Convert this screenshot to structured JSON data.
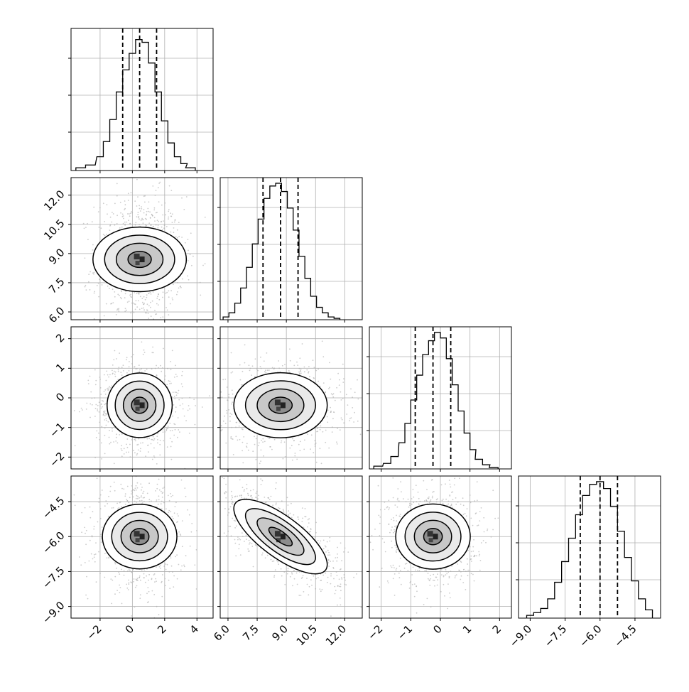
{
  "chart_data": {
    "type": "corner",
    "params": [
      {
        "ticks": [
          -2,
          0,
          2,
          4
        ],
        "tick_labels": [
          "−2",
          "0",
          "2",
          "4"
        ],
        "range": [
          -3.8,
          5.0
        ]
      },
      {
        "ticks": [
          6.0,
          7.5,
          9.0,
          10.5,
          12.0
        ],
        "tick_labels": [
          "6.0",
          "7.5",
          "9.0",
          "10.5",
          "12.0"
        ],
        "range": [
          5.6,
          12.9
        ]
      },
      {
        "ticks": [
          -2,
          -1,
          0,
          1,
          2
        ],
        "tick_labels": [
          "−2",
          "−1",
          "0",
          "1",
          "2"
        ],
        "range": [
          -2.4,
          2.4
        ]
      },
      {
        "ticks": [
          -9.0,
          -7.5,
          -6.0,
          -4.5
        ],
        "tick_labels": [
          "−9.0",
          "−7.5",
          "−6.0",
          "−4.5"
        ],
        "range": [
          -9.5,
          -3.4
        ]
      }
    ],
    "marginals": [
      {
        "quantiles": [
          -0.6,
          0.45,
          1.5
        ],
        "bins": [
          -3.2,
          -2.6,
          -2.0,
          -1.6,
          -1.2,
          -0.8,
          -0.4,
          0.0,
          0.4,
          0.8,
          1.2,
          1.6,
          2.0,
          2.4,
          2.8,
          3.2,
          3.6
        ],
        "heights": [
          0.02,
          0.04,
          0.1,
          0.21,
          0.37,
          0.57,
          0.73,
          0.85,
          0.95,
          0.93,
          0.78,
          0.57,
          0.36,
          0.2,
          0.1,
          0.05,
          0.02
        ]
      },
      {
        "quantiles": [
          7.8,
          8.7,
          9.6
        ],
        "bins": [
          5.9,
          6.2,
          6.5,
          6.8,
          7.1,
          7.4,
          7.7,
          8.0,
          8.3,
          8.6,
          8.9,
          9.2,
          9.5,
          9.8,
          10.1,
          10.4,
          10.7,
          11.0,
          11.3,
          11.6
        ],
        "heights": [
          0.02,
          0.05,
          0.12,
          0.23,
          0.38,
          0.55,
          0.73,
          0.88,
          0.97,
          0.99,
          0.93,
          0.81,
          0.65,
          0.46,
          0.3,
          0.17,
          0.09,
          0.05,
          0.02,
          0.01
        ]
      },
      {
        "quantiles": [
          -0.85,
          -0.25,
          0.35
        ],
        "bins": [
          -2.1,
          -1.8,
          -1.55,
          -1.3,
          -1.1,
          -0.9,
          -0.7,
          -0.5,
          -0.3,
          -0.1,
          0.1,
          0.3,
          0.5,
          0.7,
          0.9,
          1.1,
          1.3,
          1.55,
          1.8
        ],
        "heights": [
          0.02,
          0.04,
          0.09,
          0.19,
          0.33,
          0.5,
          0.68,
          0.83,
          0.93,
          0.99,
          0.95,
          0.8,
          0.61,
          0.42,
          0.26,
          0.14,
          0.07,
          0.03,
          0.01
        ]
      },
      {
        "quantiles": [
          -6.85,
          -6.0,
          -5.25
        ],
        "bins": [
          -9.0,
          -8.7,
          -8.4,
          -8.1,
          -7.8,
          -7.5,
          -7.2,
          -6.9,
          -6.6,
          -6.3,
          -6.0,
          -5.7,
          -5.4,
          -5.1,
          -4.8,
          -4.5,
          -4.2,
          -3.9
        ],
        "heights": [
          0.02,
          0.04,
          0.07,
          0.14,
          0.26,
          0.41,
          0.58,
          0.75,
          0.89,
          0.97,
          0.99,
          0.94,
          0.81,
          0.63,
          0.44,
          0.27,
          0.14,
          0.06
        ]
      }
    ],
    "pairs": [
      {
        "x": 0,
        "y": 1,
        "mean": [
          0.45,
          8.7
        ],
        "sd": [
          1.0,
          1.2
        ],
        "corr": 0.0
      },
      {
        "x": 0,
        "y": 2,
        "mean": [
          0.45,
          -0.25
        ],
        "sd": [
          1.0,
          0.55
        ],
        "corr": 0.0
      },
      {
        "x": 1,
        "y": 2,
        "mean": [
          8.7,
          -0.25
        ],
        "sd": [
          1.2,
          0.55
        ],
        "corr": 0.0
      },
      {
        "x": 0,
        "y": 3,
        "mean": [
          0.45,
          -6.0
        ],
        "sd": [
          1.0,
          0.8
        ],
        "corr": 0.0
      },
      {
        "x": 1,
        "y": 3,
        "mean": [
          8.7,
          -6.0
        ],
        "sd": [
          1.2,
          0.8
        ],
        "corr": -0.75
      },
      {
        "x": 2,
        "y": 3,
        "mean": [
          -0.25,
          -6.0
        ],
        "sd": [
          0.55,
          0.8
        ],
        "corr": 0.0
      }
    ],
    "contour_levels_sigma": [
      0.5,
      1.0,
      1.5,
      2.0
    ],
    "quantile_style": "dashed",
    "grid": true,
    "colors": {
      "hist": "#000000",
      "points": "#aaaaaa",
      "contour": "#000000",
      "grid": "#b0b0b0"
    }
  }
}
